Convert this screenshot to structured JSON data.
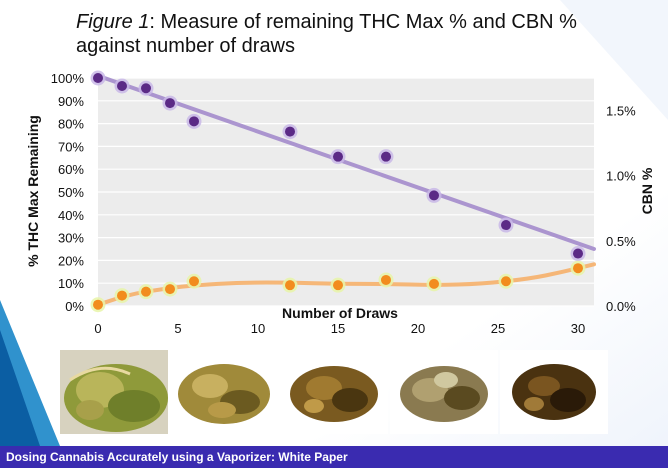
{
  "title": {
    "figure_label": "Figure 1",
    "text": ": Measure of remaining THC Max % and CBN % against number of draws"
  },
  "chart_data": {
    "type": "scatter",
    "xlabel": "Number of Draws",
    "ylabel_left": "% THC Max Remaining",
    "ylabel_right": "CBN %",
    "x_ticks": [
      "0",
      "5",
      "10",
      "15",
      "20",
      "25",
      "30"
    ],
    "y_left_ticks": [
      "0%",
      "10%",
      "20%",
      "30%",
      "40%",
      "50%",
      "60%",
      "70%",
      "80%",
      "90%",
      "100%"
    ],
    "y_right_ticks": [
      "0.0%",
      "0.5%",
      "1.0%",
      "1.5%"
    ],
    "xlim": [
      0,
      31
    ],
    "ylim_left": [
      0,
      100
    ],
    "ylim_right": [
      0,
      1.75
    ],
    "grid": true,
    "series": [
      {
        "axis": "left",
        "color": "#5b2a86",
        "trend_color": "#a48ccc",
        "points": [
          [
            0,
            100
          ],
          [
            1.5,
            96.5
          ],
          [
            3,
            95.5
          ],
          [
            4.5,
            89
          ],
          [
            6,
            81
          ],
          [
            12,
            76.5
          ],
          [
            15,
            65.5
          ],
          [
            18,
            65.5
          ],
          [
            21,
            48.5
          ],
          [
            25.5,
            35.5
          ],
          [
            30,
            23
          ]
        ],
        "trend": [
          [
            0,
            101
          ],
          [
            31,
            25
          ]
        ]
      },
      {
        "axis": "right",
        "color": "#f28c1e",
        "trend_color": "#f6b06a",
        "points": [
          [
            0,
            0.01
          ],
          [
            1.5,
            0.08
          ],
          [
            3,
            0.11
          ],
          [
            4.5,
            0.13
          ],
          [
            6,
            0.19
          ],
          [
            12,
            0.16
          ],
          [
            15,
            0.16
          ],
          [
            18,
            0.2
          ],
          [
            21,
            0.17
          ],
          [
            25.5,
            0.19
          ],
          [
            30,
            0.29
          ]
        ],
        "trend": [
          [
            0,
            0.01
          ],
          [
            2,
            0.09
          ],
          [
            4,
            0.13
          ],
          [
            6,
            0.16
          ],
          [
            9,
            0.18
          ],
          [
            12,
            0.18
          ],
          [
            15,
            0.17
          ],
          [
            18,
            0.17
          ],
          [
            21,
            0.16
          ],
          [
            24,
            0.17
          ],
          [
            27,
            0.21
          ],
          [
            29,
            0.26
          ],
          [
            31,
            0.32
          ]
        ]
      }
    ]
  },
  "photos": [
    "cannabis-bud-photo",
    "vaped-material-photo-1",
    "vaped-material-photo-2",
    "vaped-material-photo-3",
    "vaped-material-photo-4"
  ],
  "footer": {
    "text": "Dosing Cannabis Accurately using a Vaporizer: White Paper"
  },
  "colors": {
    "footer_bg": "#3a2bb0",
    "accent_blue": "#1a86c8"
  }
}
